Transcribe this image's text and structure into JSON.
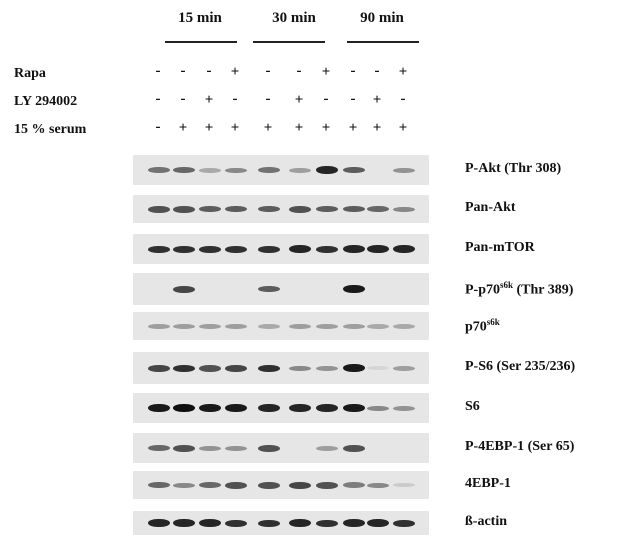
{
  "timepoints": [
    "15 min",
    "30 min",
    "90 min"
  ],
  "conditions": [
    {
      "label": "Rapa",
      "signs": [
        "-",
        "-",
        "-",
        "+",
        "-",
        "-",
        "+",
        "-",
        "-",
        "+"
      ]
    },
    {
      "label": "LY 294002",
      "signs": [
        "-",
        "-",
        "+",
        "-",
        "-",
        "+",
        "-",
        "-",
        "+",
        "-"
      ]
    },
    {
      "label": "15 % serum",
      "signs": [
        "-",
        "+",
        "+",
        "+",
        "+",
        "+",
        "+",
        "+",
        "+",
        "+"
      ]
    }
  ],
  "blots": [
    {
      "name": "P-Akt (Thr 308)",
      "main": "P-Akt (Thr 308)",
      "sup": "",
      "suffix": "",
      "intensity": [
        0.55,
        0.6,
        0.3,
        0.45,
        0.55,
        0.35,
        0.9,
        0.65,
        0.0,
        0.4
      ]
    },
    {
      "name": "Pan-Akt",
      "main": "Pan-Akt",
      "sup": "",
      "suffix": "",
      "intensity": [
        0.7,
        0.7,
        0.65,
        0.65,
        0.65,
        0.7,
        0.65,
        0.65,
        0.6,
        0.45
      ]
    },
    {
      "name": "Pan-mTOR",
      "main": "Pan-mTOR",
      "sup": "",
      "suffix": "",
      "intensity": [
        0.85,
        0.85,
        0.85,
        0.85,
        0.85,
        0.9,
        0.85,
        0.9,
        0.9,
        0.9
      ]
    },
    {
      "name": "P-p70s6k (Thr 389)",
      "main": "P-p70",
      "sup": "s6k",
      "suffix": " (Thr 389)",
      "intensity": [
        0.0,
        0.75,
        0.0,
        0.0,
        0.65,
        0.0,
        0.0,
        0.95,
        0.0,
        0.0
      ]
    },
    {
      "name": "p70s6k",
      "main": "p70",
      "sup": "s6k",
      "suffix": "",
      "intensity": [
        0.35,
        0.35,
        0.35,
        0.35,
        0.3,
        0.35,
        0.35,
        0.35,
        0.3,
        0.3
      ]
    },
    {
      "name": "P-S6 (Ser 235/236)",
      "main": "P-S6 (Ser 235/236)",
      "sup": "",
      "suffix": "",
      "intensity": [
        0.75,
        0.85,
        0.7,
        0.75,
        0.85,
        0.45,
        0.4,
        0.95,
        0.1,
        0.35
      ]
    },
    {
      "name": "S6",
      "main": "S6",
      "sup": "",
      "suffix": "",
      "intensity": [
        0.95,
        1.0,
        0.95,
        0.95,
        0.9,
        0.9,
        0.9,
        0.95,
        0.45,
        0.4
      ]
    },
    {
      "name": "P-4EBP-1 (Ser 65)",
      "main": "P-4EBP-1 (Ser 65)",
      "sup": "",
      "suffix": "",
      "intensity": [
        0.6,
        0.7,
        0.4,
        0.4,
        0.7,
        0.0,
        0.35,
        0.7,
        0.0,
        0.0
      ]
    },
    {
      "name": "4EBP-1",
      "main": "4EBP-1",
      "sup": "",
      "suffix": "",
      "intensity": [
        0.6,
        0.45,
        0.6,
        0.7,
        0.7,
        0.75,
        0.7,
        0.5,
        0.45,
        0.15
      ]
    },
    {
      "name": "ß-actin",
      "main": "ß-actin",
      "sup": "",
      "suffix": "",
      "intensity": [
        0.9,
        0.9,
        0.9,
        0.85,
        0.85,
        0.9,
        0.85,
        0.9,
        0.9,
        0.85
      ]
    }
  ]
}
